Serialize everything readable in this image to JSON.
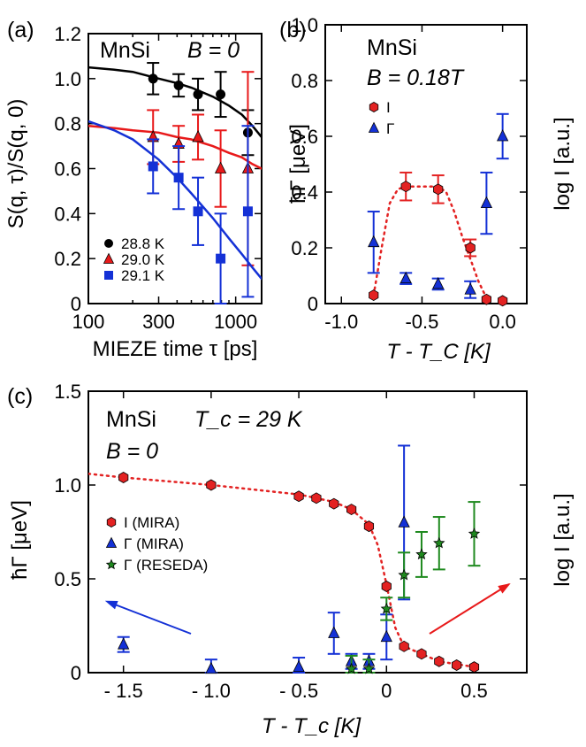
{
  "colors": {
    "black": "#000000",
    "red": "#e8191a",
    "blue": "#1431d6",
    "green": "#1f8a1f",
    "red_marker": "#e32222"
  },
  "chart_data": [
    {
      "id": "a",
      "type": "scatter",
      "panel_label": "(a)",
      "sample": "MnSi",
      "field_label": "B = 0",
      "xscale": "log",
      "xlim": [
        100,
        1500
      ],
      "ylim": [
        0,
        1.2
      ],
      "xticks": [
        100,
        300,
        1000
      ],
      "xtick_labels": [
        "100",
        "300",
        "1000"
      ],
      "yticks": [
        0,
        0.2,
        0.4,
        0.6,
        0.8,
        1.0,
        1.2
      ],
      "ytick_labels": [
        "0",
        "0.2",
        "0.4",
        "0.6",
        "0.8",
        "1.0",
        "1.2"
      ],
      "xlabel": "MIEZE time τ [ps]",
      "ylabel": "S(q, τ)/S(q, 0)",
      "legend_position": "bottom-left",
      "series": [
        {
          "name": "28.8 K",
          "color": "#000000",
          "marker": "circle",
          "x": [
            275,
            410,
            555,
            790,
            1210
          ],
          "y": [
            1.0,
            0.97,
            0.93,
            0.93,
            0.76
          ],
          "err": [
            0.07,
            0.05,
            0.07,
            0.1,
            0.1
          ],
          "fit": {
            "x": [
              100,
              150,
              200,
              300,
              400,
              500,
              700,
              900,
              1100,
              1300,
              1500
            ],
            "y": [
              1.05,
              1.04,
              1.03,
              1.0,
              0.98,
              0.96,
              0.92,
              0.88,
              0.84,
              0.79,
              0.74
            ]
          }
        },
        {
          "name": "29.0 K",
          "color": "#e8191a",
          "marker": "triangle",
          "x": [
            275,
            410,
            555,
            790,
            1210
          ],
          "y": [
            0.74,
            0.71,
            0.74,
            0.6,
            0.6
          ],
          "err": [
            0.12,
            0.08,
            0.1,
            0.17,
            0.43
          ],
          "fit": {
            "x": [
              100,
              150,
              200,
              300,
              400,
              500,
              700,
              900,
              1100,
              1300,
              1500
            ],
            "y": [
              0.79,
              0.78,
              0.77,
              0.76,
              0.74,
              0.73,
              0.7,
              0.67,
              0.65,
              0.62,
              0.6
            ]
          }
        },
        {
          "name": "29.1 K",
          "color": "#1431d6",
          "marker": "square",
          "x": [
            275,
            410,
            555,
            790,
            1210
          ],
          "y": [
            0.61,
            0.56,
            0.41,
            0.2,
            0.41
          ],
          "err": [
            0.12,
            0.14,
            0.15,
            0.2,
            0.38
          ],
          "fit": {
            "x": [
              100,
              150,
              200,
              300,
              400,
              500,
              700,
              900,
              1100,
              1300,
              1500
            ],
            "y": [
              0.81,
              0.77,
              0.73,
              0.64,
              0.56,
              0.49,
              0.38,
              0.29,
              0.22,
              0.16,
              0.11
            ]
          }
        }
      ]
    },
    {
      "id": "b",
      "type": "scatter",
      "panel_label": "(b)",
      "sample": "MnSi",
      "field_label": "B = 0.18T",
      "xlim": [
        -1.1,
        0.15
      ],
      "ylim": [
        0,
        1.0
      ],
      "xticks": [
        -1.0,
        -0.5,
        0.0
      ],
      "xtick_labels": [
        "-1.0",
        "-0.5",
        "0.0"
      ],
      "yticks": [
        0,
        0.2,
        0.4,
        0.6,
        0.8,
        1.0
      ],
      "ytick_labels": [
        "0",
        "0.2",
        "0.4",
        "0.6",
        "0.8",
        "1.0"
      ],
      "xlabel": "T - T_C [K]",
      "ylabel": "ħΓ [μeV]",
      "right_label": "log I [a.u.]",
      "legend_position": "top-left",
      "series": [
        {
          "name": "I",
          "color": "#e32222",
          "marker": "hexagon",
          "x": [
            -0.8,
            -0.6,
            -0.4,
            -0.2,
            -0.1,
            0.0
          ],
          "y": [
            0.03,
            0.42,
            0.41,
            0.2,
            0.015,
            0.01
          ],
          "err": [
            0.0,
            0.05,
            0.05,
            0.03,
            0.0,
            0.0
          ],
          "fit": {
            "x": [
              -0.8,
              -0.75,
              -0.7,
              -0.65,
              -0.6,
              -0.5,
              -0.4,
              -0.35,
              -0.3,
              -0.25,
              -0.2,
              -0.15,
              -0.1
            ],
            "y": [
              0.03,
              0.2,
              0.36,
              0.41,
              0.42,
              0.42,
              0.42,
              0.4,
              0.33,
              0.24,
              0.16,
              0.08,
              0.02
            ]
          }
        },
        {
          "name": "Γ",
          "color": "#1431d6",
          "marker": "triangle",
          "x": [
            -0.8,
            -0.6,
            -0.4,
            -0.2,
            -0.1,
            0.0
          ],
          "y": [
            0.22,
            0.09,
            0.07,
            0.05,
            0.36,
            0.6
          ],
          "err": [
            0.11,
            0.02,
            0.02,
            0.03,
            0.11,
            0.08
          ]
        }
      ]
    },
    {
      "id": "c",
      "type": "scatter",
      "panel_label": "(c)",
      "sample": "MnSi",
      "tc_label": "T_c = 29 K",
      "field_label": "B = 0",
      "xlim": [
        -1.7,
        0.8
      ],
      "ylim": [
        0,
        1.5
      ],
      "xticks": [
        -1.5,
        -1.0,
        -0.5,
        0.0,
        0.5
      ],
      "xtick_labels": [
        "- 1.5",
        "- 1.0",
        "- 0.5",
        "0",
        "0.5"
      ],
      "yticks": [
        0,
        0.5,
        1.0,
        1.5
      ],
      "ytick_labels": [
        "0",
        "0.5",
        "1.0",
        "1.5"
      ],
      "xlabel": "T - T_c [K]",
      "ylabel": "ħΓ [μeV]",
      "right_label": "log I [a.u.]",
      "legend_position": "middle-left",
      "series": [
        {
          "name": "I (MIRA)",
          "color": "#e32222",
          "marker": "hexagon",
          "x": [
            -1.5,
            -1.0,
            -0.5,
            -0.4,
            -0.3,
            -0.2,
            -0.1,
            0.0,
            0.1,
            0.2,
            0.3,
            0.4,
            0.5
          ],
          "y": [
            1.04,
            1.0,
            0.94,
            0.93,
            0.9,
            0.87,
            0.78,
            0.46,
            0.14,
            0.1,
            0.06,
            0.04,
            0.03
          ],
          "fit": {
            "x": [
              -1.7,
              -1.5,
              -1.0,
              -0.5,
              -0.3,
              -0.2,
              -0.1,
              -0.05,
              0.0,
              0.05,
              0.1,
              0.2,
              0.3,
              0.5
            ],
            "y": [
              1.06,
              1.04,
              1.0,
              0.95,
              0.91,
              0.87,
              0.79,
              0.68,
              0.47,
              0.24,
              0.14,
              0.1,
              0.06,
              0.03
            ]
          }
        },
        {
          "name": "Γ (MIRA)",
          "color": "#1431d6",
          "marker": "triangle",
          "x": [
            -1.5,
            -1.0,
            -0.5,
            -0.3,
            -0.2,
            -0.1,
            0.0,
            0.1
          ],
          "y": [
            0.15,
            0.02,
            0.03,
            0.21,
            0.06,
            0.06,
            0.19,
            0.8
          ],
          "err": [
            0.04,
            0.05,
            0.05,
            0.11,
            0.04,
            0.04,
            0.12,
            0.41
          ]
        },
        {
          "name": "Γ (RESEDA)",
          "color": "#1f8a1f",
          "marker": "star",
          "x": [
            -0.2,
            -0.1,
            0.0,
            0.1,
            0.2,
            0.3,
            0.5
          ],
          "y": [
            0.02,
            0.02,
            0.34,
            0.52,
            0.63,
            0.69,
            0.74
          ],
          "err": [
            0.07,
            0.05,
            0.06,
            0.12,
            0.12,
            0.14,
            0.17
          ]
        }
      ],
      "arrows": [
        {
          "color": "#1431d6",
          "direction": "left"
        },
        {
          "color": "#e8191a",
          "direction": "right"
        }
      ]
    }
  ]
}
